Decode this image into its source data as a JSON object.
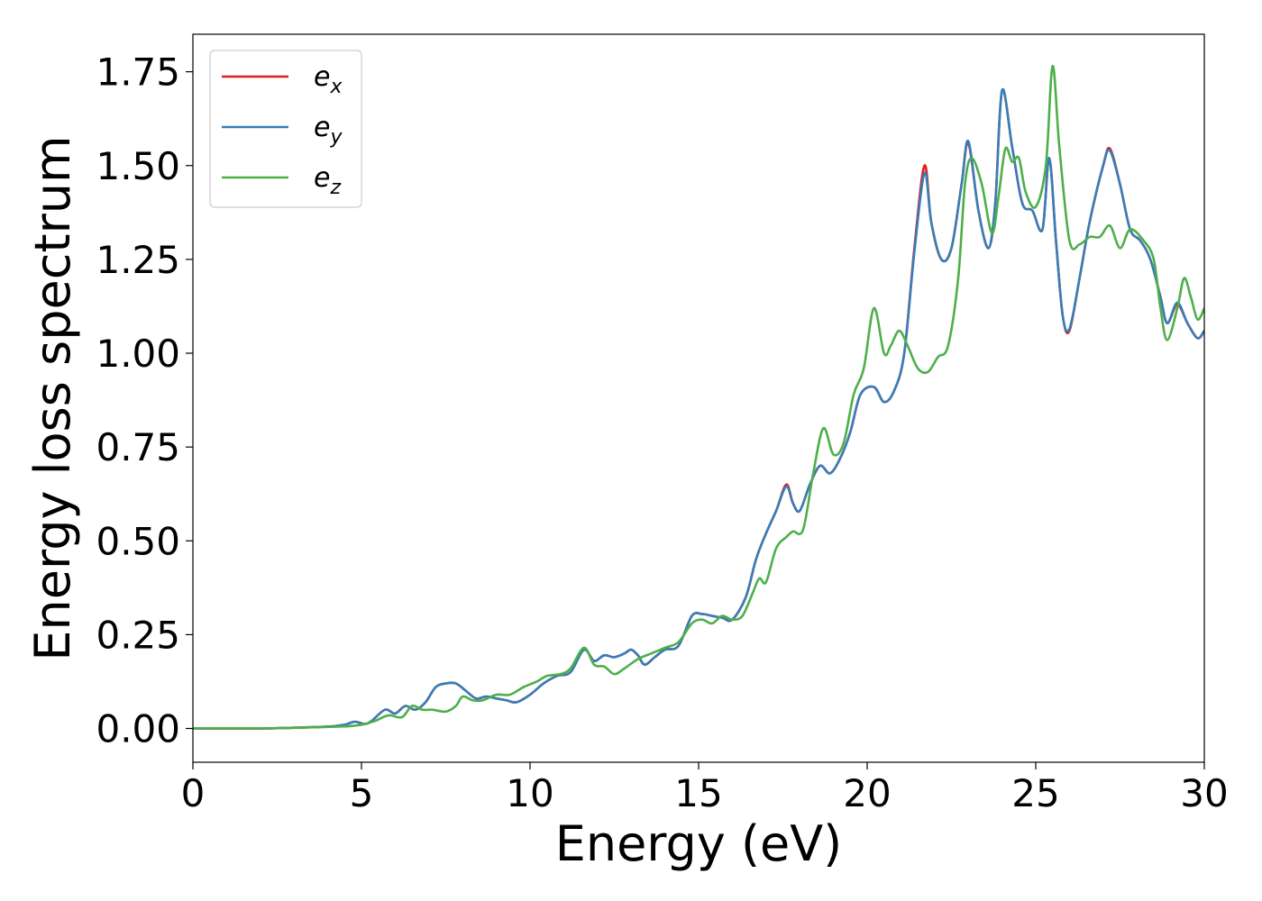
{
  "chart_data": {
    "type": "line",
    "title": "",
    "xlabel": "Energy (eV)",
    "ylabel": "Energy loss spectrum",
    "xlim": [
      0,
      30
    ],
    "ylim": [
      -0.09,
      1.85
    ],
    "xticks": [
      0,
      5,
      10,
      15,
      20,
      25,
      30
    ],
    "xtick_labels": [
      "0",
      "5",
      "10",
      "15",
      "20",
      "25",
      "30"
    ],
    "yticks": [
      0,
      0.25,
      0.5,
      0.75,
      1.0,
      1.25,
      1.5,
      1.75
    ],
    "ytick_labels": [
      "0.00",
      "0.25",
      "0.50",
      "0.75",
      "1.00",
      "1.25",
      "1.50",
      "1.75"
    ],
    "grid": false,
    "legend_position": "top-left",
    "series": [
      {
        "name": "e_x",
        "legend_base": "e",
        "legend_sub": "x",
        "color": "#e41a1c",
        "points": [
          [
            0,
            0
          ],
          [
            2,
            0
          ],
          [
            3,
            0.002
          ],
          [
            4,
            0.005
          ],
          [
            4.5,
            0.01
          ],
          [
            4.8,
            0.018
          ],
          [
            5.1,
            0.012
          ],
          [
            5.3,
            0.02
          ],
          [
            5.7,
            0.05
          ],
          [
            6.0,
            0.04
          ],
          [
            6.3,
            0.06
          ],
          [
            6.6,
            0.05
          ],
          [
            6.9,
            0.07
          ],
          [
            7.2,
            0.11
          ],
          [
            7.5,
            0.12
          ],
          [
            7.8,
            0.12
          ],
          [
            8.1,
            0.1
          ],
          [
            8.4,
            0.08
          ],
          [
            8.7,
            0.085
          ],
          [
            9.0,
            0.08
          ],
          [
            9.3,
            0.075
          ],
          [
            9.6,
            0.07
          ],
          [
            10.0,
            0.09
          ],
          [
            10.4,
            0.12
          ],
          [
            10.8,
            0.14
          ],
          [
            11.2,
            0.15
          ],
          [
            11.6,
            0.21
          ],
          [
            11.9,
            0.18
          ],
          [
            12.2,
            0.195
          ],
          [
            12.5,
            0.19
          ],
          [
            12.8,
            0.2
          ],
          [
            13.0,
            0.21
          ],
          [
            13.2,
            0.195
          ],
          [
            13.4,
            0.17
          ],
          [
            13.7,
            0.19
          ],
          [
            14.0,
            0.21
          ],
          [
            14.4,
            0.22
          ],
          [
            14.8,
            0.3
          ],
          [
            15.1,
            0.305
          ],
          [
            15.4,
            0.3
          ],
          [
            15.7,
            0.295
          ],
          [
            16.0,
            0.29
          ],
          [
            16.4,
            0.35
          ],
          [
            16.7,
            0.45
          ],
          [
            17.0,
            0.52
          ],
          [
            17.3,
            0.58
          ],
          [
            17.6,
            0.65
          ],
          [
            17.8,
            0.6
          ],
          [
            18.0,
            0.58
          ],
          [
            18.3,
            0.65
          ],
          [
            18.6,
            0.7
          ],
          [
            18.9,
            0.68
          ],
          [
            19.2,
            0.72
          ],
          [
            19.5,
            0.79
          ],
          [
            19.8,
            0.89
          ],
          [
            20.2,
            0.91
          ],
          [
            20.5,
            0.87
          ],
          [
            20.8,
            0.9
          ],
          [
            21.1,
            1.0
          ],
          [
            21.4,
            1.28
          ],
          [
            21.7,
            1.5
          ],
          [
            21.9,
            1.35
          ],
          [
            22.2,
            1.25
          ],
          [
            22.5,
            1.28
          ],
          [
            22.8,
            1.45
          ],
          [
            23.0,
            1.56
          ],
          [
            23.3,
            1.38
          ],
          [
            23.6,
            1.28
          ],
          [
            23.8,
            1.4
          ],
          [
            24.0,
            1.7
          ],
          [
            24.3,
            1.55
          ],
          [
            24.6,
            1.4
          ],
          [
            24.9,
            1.38
          ],
          [
            25.2,
            1.33
          ],
          [
            25.4,
            1.52
          ],
          [
            25.6,
            1.3
          ],
          [
            25.8,
            1.1
          ],
          [
            26.0,
            1.06
          ],
          [
            26.3,
            1.2
          ],
          [
            26.6,
            1.35
          ],
          [
            27.0,
            1.5
          ],
          [
            27.2,
            1.545
          ],
          [
            27.5,
            1.45
          ],
          [
            27.8,
            1.33
          ],
          [
            28.1,
            1.3
          ],
          [
            28.4,
            1.25
          ],
          [
            28.7,
            1.15
          ],
          [
            28.9,
            1.08
          ],
          [
            29.2,
            1.13
          ],
          [
            29.5,
            1.08
          ],
          [
            29.8,
            1.04
          ],
          [
            30.0,
            1.06
          ]
        ]
      },
      {
        "name": "e_y",
        "legend_base": "e",
        "legend_sub": "y",
        "color": "#377eb8",
        "points": [
          [
            0,
            0
          ],
          [
            2,
            0
          ],
          [
            3,
            0.002
          ],
          [
            4,
            0.005
          ],
          [
            4.5,
            0.01
          ],
          [
            4.8,
            0.018
          ],
          [
            5.1,
            0.012
          ],
          [
            5.3,
            0.02
          ],
          [
            5.7,
            0.05
          ],
          [
            6.0,
            0.04
          ],
          [
            6.3,
            0.06
          ],
          [
            6.6,
            0.05
          ],
          [
            6.9,
            0.07
          ],
          [
            7.2,
            0.11
          ],
          [
            7.5,
            0.12
          ],
          [
            7.8,
            0.12
          ],
          [
            8.1,
            0.1
          ],
          [
            8.4,
            0.08
          ],
          [
            8.7,
            0.085
          ],
          [
            9.0,
            0.08
          ],
          [
            9.3,
            0.075
          ],
          [
            9.6,
            0.07
          ],
          [
            10.0,
            0.09
          ],
          [
            10.4,
            0.12
          ],
          [
            10.8,
            0.14
          ],
          [
            11.2,
            0.15
          ],
          [
            11.6,
            0.21
          ],
          [
            11.9,
            0.18
          ],
          [
            12.2,
            0.195
          ],
          [
            12.5,
            0.19
          ],
          [
            12.8,
            0.2
          ],
          [
            13.0,
            0.21
          ],
          [
            13.2,
            0.195
          ],
          [
            13.4,
            0.17
          ],
          [
            13.7,
            0.19
          ],
          [
            14.0,
            0.21
          ],
          [
            14.4,
            0.22
          ],
          [
            14.8,
            0.3
          ],
          [
            15.1,
            0.305
          ],
          [
            15.4,
            0.3
          ],
          [
            15.7,
            0.295
          ],
          [
            16.0,
            0.29
          ],
          [
            16.4,
            0.35
          ],
          [
            16.7,
            0.45
          ],
          [
            17.0,
            0.52
          ],
          [
            17.3,
            0.58
          ],
          [
            17.6,
            0.645
          ],
          [
            17.8,
            0.6
          ],
          [
            18.0,
            0.58
          ],
          [
            18.3,
            0.65
          ],
          [
            18.6,
            0.7
          ],
          [
            18.9,
            0.68
          ],
          [
            19.2,
            0.72
          ],
          [
            19.5,
            0.79
          ],
          [
            19.8,
            0.89
          ],
          [
            20.2,
            0.91
          ],
          [
            20.5,
            0.87
          ],
          [
            20.8,
            0.9
          ],
          [
            21.1,
            1.0
          ],
          [
            21.4,
            1.27
          ],
          [
            21.7,
            1.48
          ],
          [
            21.9,
            1.35
          ],
          [
            22.2,
            1.25
          ],
          [
            22.5,
            1.28
          ],
          [
            22.8,
            1.45
          ],
          [
            23.0,
            1.565
          ],
          [
            23.3,
            1.38
          ],
          [
            23.6,
            1.28
          ],
          [
            23.8,
            1.4
          ],
          [
            24.0,
            1.7
          ],
          [
            24.3,
            1.55
          ],
          [
            24.6,
            1.4
          ],
          [
            24.9,
            1.38
          ],
          [
            25.2,
            1.33
          ],
          [
            25.4,
            1.52
          ],
          [
            25.6,
            1.3
          ],
          [
            25.8,
            1.1
          ],
          [
            26.0,
            1.065
          ],
          [
            26.3,
            1.2
          ],
          [
            26.6,
            1.35
          ],
          [
            27.0,
            1.5
          ],
          [
            27.2,
            1.54
          ],
          [
            27.5,
            1.45
          ],
          [
            27.8,
            1.33
          ],
          [
            28.1,
            1.3
          ],
          [
            28.4,
            1.25
          ],
          [
            28.7,
            1.15
          ],
          [
            28.9,
            1.08
          ],
          [
            29.2,
            1.135
          ],
          [
            29.5,
            1.08
          ],
          [
            29.8,
            1.04
          ],
          [
            30.0,
            1.06
          ]
        ]
      },
      {
        "name": "e_z",
        "legend_base": "e",
        "legend_sub": "z",
        "color": "#4daf4a",
        "points": [
          [
            0,
            0
          ],
          [
            2,
            0
          ],
          [
            3,
            0.002
          ],
          [
            4,
            0.004
          ],
          [
            4.6,
            0.006
          ],
          [
            5.0,
            0.01
          ],
          [
            5.4,
            0.02
          ],
          [
            5.8,
            0.035
          ],
          [
            6.2,
            0.03
          ],
          [
            6.5,
            0.06
          ],
          [
            6.8,
            0.05
          ],
          [
            7.1,
            0.05
          ],
          [
            7.5,
            0.045
          ],
          [
            7.8,
            0.06
          ],
          [
            8.0,
            0.085
          ],
          [
            8.3,
            0.075
          ],
          [
            8.6,
            0.075
          ],
          [
            9.0,
            0.09
          ],
          [
            9.4,
            0.09
          ],
          [
            9.8,
            0.11
          ],
          [
            10.2,
            0.125
          ],
          [
            10.5,
            0.14
          ],
          [
            10.9,
            0.145
          ],
          [
            11.2,
            0.16
          ],
          [
            11.6,
            0.215
          ],
          [
            11.9,
            0.17
          ],
          [
            12.2,
            0.165
          ],
          [
            12.5,
            0.145
          ],
          [
            12.8,
            0.16
          ],
          [
            13.2,
            0.185
          ],
          [
            13.6,
            0.2
          ],
          [
            14.0,
            0.215
          ],
          [
            14.4,
            0.23
          ],
          [
            14.8,
            0.28
          ],
          [
            15.1,
            0.29
          ],
          [
            15.4,
            0.28
          ],
          [
            15.7,
            0.3
          ],
          [
            16.0,
            0.29
          ],
          [
            16.3,
            0.3
          ],
          [
            16.6,
            0.36
          ],
          [
            16.8,
            0.4
          ],
          [
            17.0,
            0.39
          ],
          [
            17.3,
            0.48
          ],
          [
            17.6,
            0.51
          ],
          [
            17.8,
            0.525
          ],
          [
            18.1,
            0.53
          ],
          [
            18.4,
            0.68
          ],
          [
            18.7,
            0.8
          ],
          [
            19.0,
            0.73
          ],
          [
            19.3,
            0.76
          ],
          [
            19.6,
            0.89
          ],
          [
            19.9,
            0.96
          ],
          [
            20.2,
            1.12
          ],
          [
            20.5,
            1.0
          ],
          [
            20.7,
            1.02
          ],
          [
            20.95,
            1.06
          ],
          [
            21.2,
            1.02
          ],
          [
            21.5,
            0.96
          ],
          [
            21.8,
            0.95
          ],
          [
            22.1,
            0.99
          ],
          [
            22.4,
            1.02
          ],
          [
            22.7,
            1.2
          ],
          [
            22.9,
            1.45
          ],
          [
            23.1,
            1.52
          ],
          [
            23.4,
            1.45
          ],
          [
            23.7,
            1.32
          ],
          [
            23.9,
            1.42
          ],
          [
            24.1,
            1.545
          ],
          [
            24.3,
            1.51
          ],
          [
            24.5,
            1.52
          ],
          [
            24.7,
            1.43
          ],
          [
            25.0,
            1.39
          ],
          [
            25.3,
            1.5
          ],
          [
            25.5,
            1.765
          ],
          [
            25.7,
            1.55
          ],
          [
            26.0,
            1.3
          ],
          [
            26.3,
            1.29
          ],
          [
            26.6,
            1.31
          ],
          [
            26.9,
            1.31
          ],
          [
            27.2,
            1.34
          ],
          [
            27.5,
            1.28
          ],
          [
            27.8,
            1.33
          ],
          [
            28.2,
            1.3
          ],
          [
            28.5,
            1.25
          ],
          [
            28.7,
            1.12
          ],
          [
            28.9,
            1.035
          ],
          [
            29.2,
            1.12
          ],
          [
            29.4,
            1.2
          ],
          [
            29.6,
            1.15
          ],
          [
            29.8,
            1.09
          ],
          [
            30.0,
            1.12
          ]
        ]
      }
    ]
  }
}
